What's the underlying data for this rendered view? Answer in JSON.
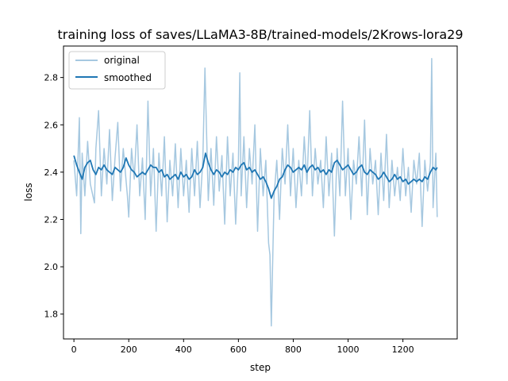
{
  "chart_data": {
    "type": "line",
    "title": "training loss of saves/LLaMA3-8B/trained-models/2Krows-lora29",
    "xlabel": "step",
    "ylabel": "loss",
    "xlim": [
      -38,
      1398
    ],
    "ylim": [
      1.695,
      2.933
    ],
    "xticks": [
      0,
      200,
      400,
      600,
      800,
      1000,
      1200
    ],
    "yticks": [
      1.8,
      2.0,
      2.2,
      2.4,
      2.6,
      2.8
    ],
    "grid": false,
    "legend_position": "top-left",
    "series": [
      {
        "name": "original",
        "color": "#a6c8e0",
        "x": [
          0,
          10,
          20,
          25,
          30,
          40,
          50,
          60,
          75,
          80,
          90,
          100,
          110,
          120,
          130,
          140,
          150,
          160,
          170,
          180,
          195,
          200,
          210,
          220,
          230,
          240,
          250,
          260,
          270,
          280,
          290,
          300,
          310,
          320,
          330,
          340,
          350,
          360,
          370,
          380,
          390,
          400,
          410,
          420,
          430,
          440,
          450,
          460,
          470,
          478,
          490,
          500,
          510,
          520,
          530,
          540,
          550,
          560,
          570,
          580,
          590,
          600,
          605,
          610,
          620,
          630,
          640,
          650,
          660,
          670,
          680,
          690,
          700,
          710,
          715,
          720,
          730,
          740,
          750,
          760,
          770,
          780,
          790,
          800,
          810,
          820,
          830,
          840,
          850,
          860,
          870,
          880,
          890,
          900,
          910,
          920,
          930,
          940,
          950,
          960,
          970,
          980,
          990,
          1000,
          1010,
          1020,
          1030,
          1040,
          1050,
          1060,
          1070,
          1080,
          1090,
          1100,
          1110,
          1120,
          1130,
          1140,
          1150,
          1160,
          1170,
          1180,
          1190,
          1200,
          1210,
          1220,
          1230,
          1240,
          1250,
          1260,
          1270,
          1280,
          1290,
          1300,
          1305,
          1310,
          1320,
          1325
        ],
        "y": [
          2.45,
          2.3,
          2.63,
          2.14,
          2.48,
          2.3,
          2.53,
          2.35,
          2.27,
          2.5,
          2.66,
          2.3,
          2.5,
          2.35,
          2.58,
          2.28,
          2.46,
          2.61,
          2.32,
          2.5,
          2.3,
          2.21,
          2.5,
          2.37,
          2.6,
          2.3,
          2.46,
          2.2,
          2.7,
          2.3,
          2.5,
          2.15,
          2.48,
          2.3,
          2.55,
          2.19,
          2.45,
          2.3,
          2.52,
          2.25,
          2.5,
          2.3,
          2.45,
          2.23,
          2.5,
          2.3,
          2.53,
          2.25,
          2.45,
          2.84,
          2.28,
          2.5,
          2.26,
          2.55,
          2.32,
          2.47,
          2.18,
          2.55,
          2.3,
          2.48,
          2.18,
          2.45,
          2.82,
          2.3,
          2.55,
          2.25,
          2.5,
          2.35,
          2.6,
          2.15,
          2.5,
          2.3,
          2.45,
          2.1,
          2.05,
          1.75,
          2.3,
          2.45,
          2.2,
          2.5,
          2.35,
          2.6,
          2.3,
          2.5,
          2.25,
          2.45,
          2.3,
          2.55,
          2.35,
          2.66,
          2.3,
          2.5,
          2.35,
          2.45,
          2.25,
          2.55,
          2.3,
          2.48,
          2.13,
          2.5,
          2.3,
          2.7,
          2.3,
          2.5,
          2.2,
          2.45,
          2.35,
          2.55,
          2.3,
          2.62,
          2.22,
          2.5,
          2.35,
          2.45,
          2.22,
          2.48,
          2.28,
          2.56,
          2.25,
          2.45,
          2.3,
          2.42,
          2.28,
          2.5,
          2.3,
          2.42,
          2.23,
          2.45,
          2.35,
          2.48,
          2.17,
          2.45,
          2.32,
          2.44,
          2.88,
          2.25,
          2.48,
          2.21
        ]
      },
      {
        "name": "smoothed",
        "color": "#1f77b4",
        "x": [
          0,
          10,
          20,
          30,
          40,
          50,
          60,
          70,
          80,
          90,
          100,
          110,
          120,
          130,
          140,
          150,
          160,
          170,
          180,
          190,
          200,
          210,
          220,
          230,
          240,
          250,
          260,
          270,
          280,
          290,
          300,
          310,
          320,
          330,
          340,
          350,
          360,
          370,
          380,
          390,
          400,
          410,
          420,
          430,
          440,
          450,
          460,
          470,
          480,
          490,
          500,
          510,
          520,
          530,
          540,
          550,
          560,
          570,
          580,
          590,
          600,
          610,
          620,
          630,
          640,
          650,
          660,
          670,
          680,
          690,
          700,
          710,
          720,
          730,
          740,
          750,
          760,
          770,
          780,
          790,
          800,
          810,
          820,
          830,
          840,
          850,
          860,
          870,
          880,
          890,
          900,
          910,
          920,
          930,
          940,
          950,
          960,
          970,
          980,
          990,
          1000,
          1010,
          1020,
          1030,
          1040,
          1050,
          1060,
          1070,
          1080,
          1090,
          1100,
          1110,
          1120,
          1130,
          1140,
          1150,
          1160,
          1170,
          1180,
          1190,
          1200,
          1210,
          1220,
          1230,
          1240,
          1250,
          1260,
          1270,
          1280,
          1290,
          1300,
          1310,
          1320,
          1325
        ],
        "y": [
          2.47,
          2.43,
          2.4,
          2.37,
          2.42,
          2.44,
          2.45,
          2.41,
          2.39,
          2.42,
          2.41,
          2.43,
          2.41,
          2.4,
          2.39,
          2.42,
          2.41,
          2.4,
          2.42,
          2.46,
          2.43,
          2.41,
          2.4,
          2.38,
          2.39,
          2.4,
          2.39,
          2.41,
          2.43,
          2.42,
          2.42,
          2.4,
          2.41,
          2.38,
          2.39,
          2.37,
          2.38,
          2.39,
          2.37,
          2.4,
          2.38,
          2.39,
          2.37,
          2.38,
          2.41,
          2.39,
          2.4,
          2.42,
          2.48,
          2.44,
          2.41,
          2.39,
          2.41,
          2.4,
          2.38,
          2.4,
          2.39,
          2.41,
          2.4,
          2.42,
          2.41,
          2.43,
          2.44,
          2.41,
          2.42,
          2.4,
          2.41,
          2.39,
          2.37,
          2.38,
          2.36,
          2.33,
          2.29,
          2.32,
          2.34,
          2.37,
          2.38,
          2.41,
          2.43,
          2.42,
          2.4,
          2.41,
          2.42,
          2.41,
          2.43,
          2.4,
          2.42,
          2.43,
          2.41,
          2.42,
          2.4,
          2.41,
          2.39,
          2.41,
          2.4,
          2.44,
          2.45,
          2.43,
          2.41,
          2.42,
          2.43,
          2.41,
          2.39,
          2.4,
          2.42,
          2.43,
          2.4,
          2.39,
          2.41,
          2.4,
          2.39,
          2.37,
          2.38,
          2.4,
          2.38,
          2.36,
          2.37,
          2.39,
          2.37,
          2.38,
          2.36,
          2.37,
          2.35,
          2.36,
          2.37,
          2.36,
          2.37,
          2.36,
          2.38,
          2.37,
          2.4,
          2.42,
          2.41,
          2.42
        ]
      }
    ]
  }
}
